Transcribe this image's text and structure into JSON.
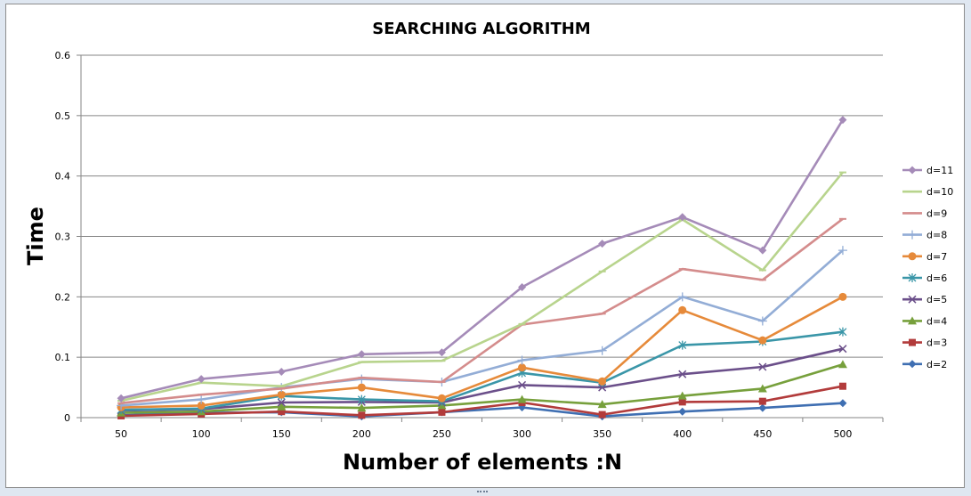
{
  "chart_data": {
    "type": "line",
    "title": "SEARCHING  ALGORITHM",
    "xlabel": "Number of elements :N",
    "ylabel": "Time",
    "categories": [
      "50",
      "100",
      "150",
      "200",
      "250",
      "300",
      "350",
      "400",
      "450",
      "500"
    ],
    "ylim": [
      0,
      0.6
    ],
    "yticks": [
      "0",
      "0.1",
      "0.2",
      "0.3",
      "0.4",
      "0.5",
      "0.6"
    ],
    "grid": "horizontal",
    "legend_position": "right",
    "series": [
      {
        "name": "d=11",
        "color": "#a58bb8",
        "marker": "diamond",
        "values": [
          0.032,
          0.064,
          0.076,
          0.105,
          0.108,
          0.216,
          0.288,
          0.332,
          0.277,
          0.493
        ]
      },
      {
        "name": "d=10",
        "color": "#b8d48d",
        "marker": "dash",
        "values": [
          0.028,
          0.058,
          0.052,
          0.092,
          0.094,
          0.155,
          0.242,
          0.328,
          0.244,
          0.406
        ]
      },
      {
        "name": "d=9",
        "color": "#d48c8c",
        "marker": "dash",
        "values": [
          0.024,
          0.038,
          0.048,
          0.066,
          0.059,
          0.154,
          0.172,
          0.246,
          0.228,
          0.329
        ]
      },
      {
        "name": "d=8",
        "color": "#93add6",
        "marker": "plus",
        "values": [
          0.02,
          0.03,
          0.05,
          0.064,
          0.059,
          0.095,
          0.111,
          0.2,
          0.16,
          0.277
        ]
      },
      {
        "name": "d=7",
        "color": "#e68a3a",
        "marker": "circle",
        "values": [
          0.017,
          0.02,
          0.038,
          0.05,
          0.032,
          0.083,
          0.06,
          0.178,
          0.128,
          0.2
        ]
      },
      {
        "name": "d=6",
        "color": "#3a96a8",
        "marker": "asterisk",
        "values": [
          0.013,
          0.015,
          0.036,
          0.03,
          0.027,
          0.074,
          0.058,
          0.12,
          0.126,
          0.142
        ]
      },
      {
        "name": "d=5",
        "color": "#6b4f8a",
        "marker": "x",
        "values": [
          0.012,
          0.014,
          0.025,
          0.026,
          0.025,
          0.054,
          0.05,
          0.072,
          0.084,
          0.114
        ]
      },
      {
        "name": "d=4",
        "color": "#77a03c",
        "marker": "triangle",
        "values": [
          0.008,
          0.01,
          0.018,
          0.016,
          0.02,
          0.03,
          0.022,
          0.036,
          0.048,
          0.088
        ]
      },
      {
        "name": "d=3",
        "color": "#b23b3b",
        "marker": "square",
        "values": [
          0.003,
          0.006,
          0.01,
          0.004,
          0.009,
          0.025,
          0.005,
          0.026,
          0.027,
          0.052
        ]
      },
      {
        "name": "d=2",
        "color": "#3f6fb2",
        "marker": "diamond",
        "values": [
          0.004,
          0.008,
          0.009,
          0.002,
          0.009,
          0.017,
          0.002,
          0.01,
          0.016,
          0.024
        ]
      }
    ]
  }
}
